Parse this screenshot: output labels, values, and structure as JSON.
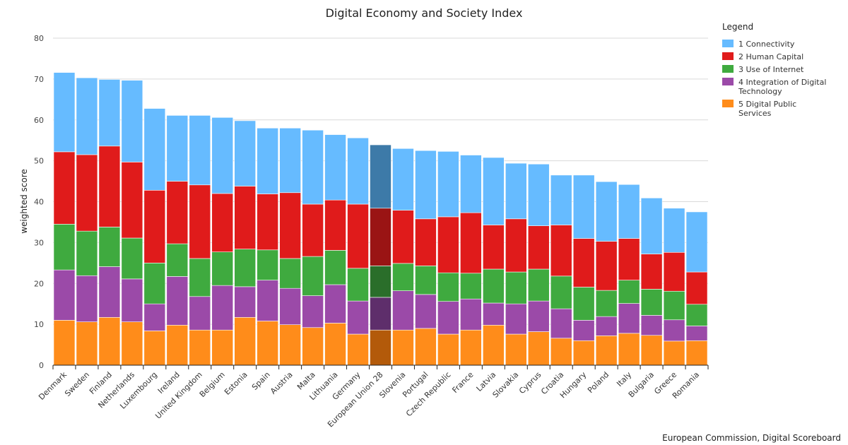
{
  "chart_data": {
    "type": "bar",
    "stacked": true,
    "title": "Digital Economy and Society Index",
    "xlabel": "",
    "ylabel": "weighted score",
    "ylim": [
      0,
      80
    ],
    "yticks": [
      0,
      10,
      20,
      30,
      40,
      50,
      60,
      70,
      80
    ],
    "grid": true,
    "legend_title": "Legend",
    "legend_position": "top-right",
    "highlighted_category": "European Union 28",
    "credit": "European Commission, Digital Scoreboard",
    "categories": [
      "Denmark",
      "Sweden",
      "Finland",
      "Netherlands",
      "Luxembourg",
      "Ireland",
      "United Kingdom",
      "Belgium",
      "Estonia",
      "Spain",
      "Austria",
      "Malta",
      "Lithuania",
      "Germany",
      "European Union 28",
      "Slovenia",
      "Portugal",
      "Czech Republic",
      "France",
      "Latvia",
      "Slovakia",
      "Cyprus",
      "Croatia",
      "Hungary",
      "Poland",
      "Italy",
      "Bulgaria",
      "Greece",
      "Romania"
    ],
    "series": [
      {
        "name": "5 Digital Public Services",
        "color": "#ff8c1a",
        "highlight_color": "#b35a0a",
        "values": [
          11,
          10.6,
          11.7,
          10.6,
          8.4,
          9.8,
          8.6,
          8.6,
          11.7,
          10.8,
          9.9,
          9.2,
          10.3,
          7.6,
          8.6,
          8.6,
          9.0,
          7.6,
          8.6,
          9.8,
          7.6,
          8.2,
          6.6,
          6.0,
          7.2,
          7.8,
          7.3,
          5.9,
          6.0
        ]
      },
      {
        "name": "4 Integration of Digital Technology",
        "color": "#9b4aa8",
        "highlight_color": "#5e2e6b",
        "values": [
          12.3,
          11.3,
          12.4,
          10.5,
          6.6,
          11.9,
          8.2,
          10.9,
          7.5,
          10.0,
          8.9,
          7.8,
          9.4,
          8.1,
          8.0,
          9.6,
          8.3,
          8.0,
          7.6,
          5.4,
          7.4,
          7.5,
          7.2,
          5.0,
          4.7,
          7.3,
          4.9,
          5.2,
          3.6
        ]
      },
      {
        "name": "3 Use of Internet",
        "color": "#3faa3f",
        "highlight_color": "#2a6e2a",
        "values": [
          11.2,
          10.9,
          9.7,
          10.0,
          10.0,
          8.0,
          9.3,
          8.2,
          9.2,
          7.4,
          7.3,
          9.6,
          8.4,
          8.0,
          7.7,
          6.7,
          7.0,
          7.0,
          6.3,
          8.3,
          7.8,
          7.8,
          8.0,
          8.1,
          6.4,
          5.7,
          6.4,
          7.0,
          5.3
        ]
      },
      {
        "name": "2 Human Capital",
        "color": "#e01b1b",
        "highlight_color": "#9a1414",
        "values": [
          17.7,
          18.7,
          19.8,
          18.6,
          17.8,
          15.3,
          18.0,
          14.3,
          15.4,
          13.7,
          16.1,
          12.8,
          12.3,
          15.7,
          14.1,
          13.0,
          11.5,
          13.7,
          14.8,
          10.8,
          13.0,
          10.6,
          12.5,
          11.9,
          12.0,
          10.2,
          8.6,
          9.5,
          7.9
        ]
      },
      {
        "name": "1 Connectivity",
        "color": "#66bbff",
        "highlight_color": "#3d7aa8",
        "values": [
          19.4,
          18.8,
          16.3,
          20.0,
          20.0,
          16.1,
          17.0,
          18.6,
          16.0,
          16.1,
          15.8,
          18.1,
          16.0,
          16.2,
          15.5,
          15.1,
          16.7,
          16.0,
          14.1,
          16.5,
          13.6,
          15.1,
          12.2,
          15.5,
          14.6,
          13.2,
          13.7,
          10.8,
          14.7
        ]
      }
    ],
    "legend_order": [
      "1 Connectivity",
      "2 Human Capital",
      "3 Use of Internet",
      "4 Integration of Digital Technology",
      "5 Digital Public Services"
    ]
  }
}
